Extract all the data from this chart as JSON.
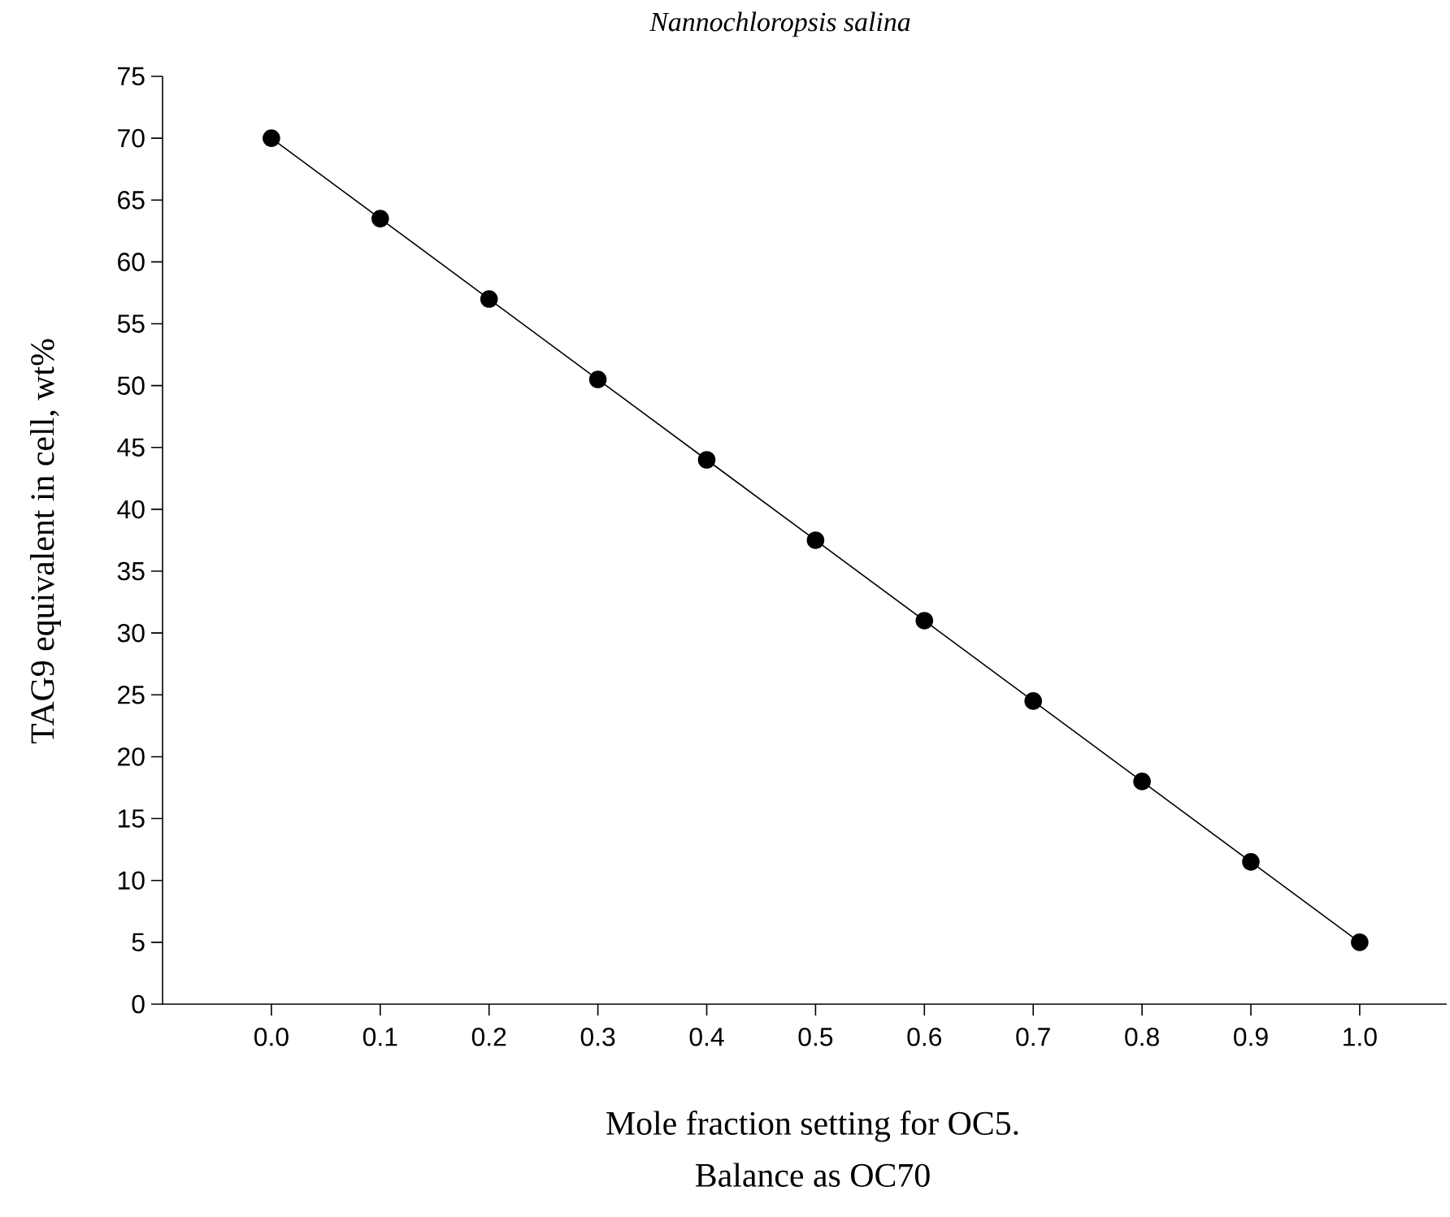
{
  "chart_data": {
    "type": "line",
    "title": "Nannochloropsis salina",
    "xlabel": "Mole fraction setting for OC5.\nBalance as OC70",
    "ylabel": "TAG9 equivalent in cell, wt%",
    "x": [
      0.0,
      0.1,
      0.2,
      0.3,
      0.4,
      0.5,
      0.6,
      0.7,
      0.8,
      0.9,
      1.0
    ],
    "series": [
      {
        "color": "#000000",
        "values": [
          70,
          63.5,
          57,
          50.5,
          44,
          37.5,
          31,
          24.5,
          18,
          11.5,
          5
        ]
      }
    ],
    "xlim": [
      -0.1,
      1.08
    ],
    "xticks": [
      {
        "value": 0.0,
        "label": "0.0"
      },
      {
        "value": 0.1,
        "label": "0.1"
      },
      {
        "value": 0.2,
        "label": "0.2"
      },
      {
        "value": 0.3,
        "label": "0.3"
      },
      {
        "value": 0.4,
        "label": "0.4"
      },
      {
        "value": 0.5,
        "label": "0.5"
      },
      {
        "value": 0.6,
        "label": "0.6"
      },
      {
        "value": 0.7,
        "label": "0.7"
      },
      {
        "value": 0.8,
        "label": "0.8"
      },
      {
        "value": 0.9,
        "label": "0.9"
      },
      {
        "value": 1.0,
        "label": "1.0"
      }
    ],
    "ylim": [
      0,
      75
    ],
    "yticks": [
      0,
      5,
      10,
      15,
      20,
      25,
      30,
      35,
      40,
      45,
      50,
      55,
      60,
      65,
      70,
      75
    ],
    "marker": "circle",
    "line_style": "solid"
  }
}
